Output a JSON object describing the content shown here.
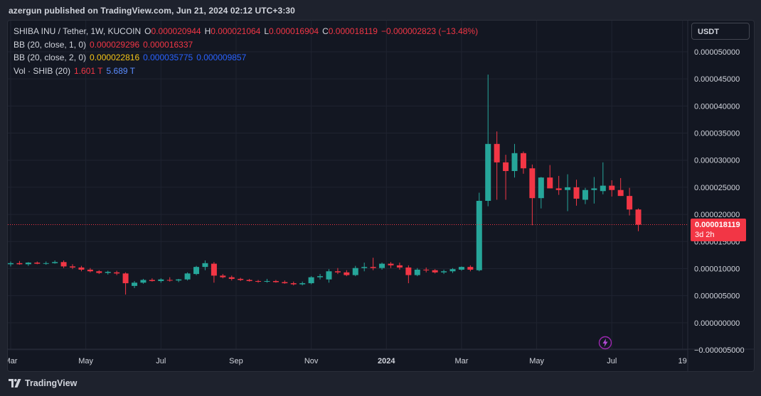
{
  "header": {
    "text": "azergun published on TradingView.com, Jun 21, 2024 02:12 UTC+3:30"
  },
  "legend": {
    "symbol": "SHIBA INU / Tether, 1W, KUCOIN",
    "o_label": "O",
    "o_value": "0.000020944",
    "h_label": "H",
    "h_value": "0.000021064",
    "l_label": "L",
    "l_value": "0.000016904",
    "c_label": "C",
    "c_value": "0.000018119",
    "change": "−0.000002823 (−13.48%)",
    "bb1_label": "BB (20, close, 1, 0)",
    "bb1_v1": "0.000029296",
    "bb1_v2": "0.000016337",
    "bb2_label": "BB (20, close, 2, 0)",
    "bb2_v1": "0.000022816",
    "bb2_v2": "0.000035775",
    "bb2_v3": "0.000009857",
    "vol_label": "Vol · SHIB (20)",
    "vol_v1": "1.601 T",
    "vol_v2": "5.689 T"
  },
  "currency_button": "USDT",
  "price_tag": {
    "price": "0.000018119",
    "countdown": "3d 2h"
  },
  "footer": {
    "brand": "TradingView",
    "logo_icon": "tradingview-logo-icon"
  },
  "ideas_icon": "lightning-bolt-icon",
  "colors": {
    "up": "#26a69a",
    "down": "#f23645",
    "background": "#131722",
    "grid": "#1f2330",
    "text": "#d1d4dc"
  },
  "chart_data": {
    "type": "candlestick",
    "timeframe": "1W",
    "y_axis": {
      "ticks": [
        50000,
        45000,
        40000,
        35000,
        30000,
        25000,
        20000,
        15000,
        10000,
        5000,
        0,
        -5000
      ],
      "labels": [
        "0.000050000",
        "0.000045000",
        "0.000040000",
        "0.000035000",
        "0.000030000",
        "0.000025000",
        "0.000020000",
        "0.000015000",
        "0.000010000",
        "0.000005000",
        "0.000000000",
        "−0.000005000"
      ],
      "unit_note_scale": 1e-09
    },
    "x_axis": {
      "labels": [
        "Mar",
        "May",
        "Jul",
        "Sep",
        "Nov",
        "2024",
        "Mar",
        "May",
        "Jul",
        "19"
      ],
      "label_bar_index": [
        0,
        8.5,
        17,
        25.5,
        34,
        42.5,
        51,
        59.5,
        68,
        76
      ]
    },
    "last_price_line": 18119,
    "candles_e9": [
      [
        10800,
        11300,
        10400,
        11000
      ],
      [
        11000,
        11400,
        10700,
        10800
      ],
      [
        10800,
        11200,
        10500,
        11100
      ],
      [
        11100,
        11300,
        10800,
        10900
      ],
      [
        10900,
        11300,
        10700,
        11000
      ],
      [
        11000,
        11500,
        10900,
        11200
      ],
      [
        11200,
        11500,
        10100,
        10400
      ],
      [
        10400,
        10800,
        9900,
        10200
      ],
      [
        10200,
        10500,
        9500,
        9800
      ],
      [
        9800,
        10100,
        9300,
        9500
      ],
      [
        9500,
        9700,
        9000,
        9200
      ],
      [
        9200,
        9600,
        8900,
        9400
      ],
      [
        9300,
        9600,
        8800,
        9100
      ],
      [
        9100,
        9300,
        5200,
        7300
      ],
      [
        6800,
        7700,
        6400,
        7400
      ],
      [
        7400,
        8100,
        7200,
        7900
      ],
      [
        7900,
        8200,
        7600,
        7700
      ],
      [
        7700,
        8200,
        7400,
        8000
      ],
      [
        7900,
        8400,
        7600,
        7800
      ],
      [
        7800,
        8100,
        7500,
        8000
      ],
      [
        8000,
        9300,
        7800,
        9100
      ],
      [
        9000,
        10500,
        8800,
        10300
      ],
      [
        10300,
        11500,
        9700,
        11000
      ],
      [
        10900,
        11200,
        7400,
        8700
      ],
      [
        8700,
        9000,
        8200,
        8400
      ],
      [
        8400,
        8700,
        7800,
        8100
      ],
      [
        8100,
        8300,
        7700,
        7900
      ],
      [
        7900,
        8100,
        7600,
        7700
      ],
      [
        7700,
        7900,
        7400,
        7600
      ],
      [
        7600,
        8100,
        7400,
        7700
      ],
      [
        7700,
        7900,
        7400,
        7500
      ],
      [
        7500,
        7800,
        7200,
        7300
      ],
      [
        7300,
        7600,
        6900,
        7100
      ],
      [
        7100,
        7600,
        6900,
        7300
      ],
      [
        7300,
        8600,
        7100,
        8400
      ],
      [
        8400,
        9000,
        8000,
        8600
      ],
      [
        8000,
        9900,
        7400,
        9500
      ],
      [
        9500,
        10100,
        9000,
        9300
      ],
      [
        9300,
        9700,
        8600,
        8800
      ],
      [
        8800,
        10500,
        8600,
        10100
      ],
      [
        10100,
        11100,
        9500,
        10300
      ],
      [
        10300,
        12000,
        9700,
        10100
      ],
      [
        10100,
        11100,
        9800,
        10900
      ],
      [
        10900,
        11200,
        10100,
        10600
      ],
      [
        10600,
        11100,
        9800,
        10200
      ],
      [
        10200,
        10600,
        7300,
        8800
      ],
      [
        8800,
        10100,
        8600,
        9800
      ],
      [
        9800,
        10200,
        9300,
        9700
      ],
      [
        9700,
        9900,
        9100,
        9300
      ],
      [
        9300,
        9800,
        9000,
        9500
      ],
      [
        9500,
        10100,
        9200,
        9900
      ],
      [
        9800,
        10400,
        9600,
        10300
      ],
      [
        10300,
        10600,
        9500,
        9800
      ],
      [
        9700,
        24000,
        9500,
        22500
      ],
      [
        22500,
        45800,
        21500,
        33000
      ],
      [
        33000,
        35300,
        22700,
        29600
      ],
      [
        29600,
        31000,
        22700,
        28000
      ],
      [
        28000,
        33000,
        26800,
        31300
      ],
      [
        31300,
        31600,
        27500,
        28500
      ],
      [
        28500,
        29200,
        18000,
        23000
      ],
      [
        23000,
        26900,
        21100,
        26800
      ],
      [
        26800,
        29100,
        25300,
        24800
      ],
      [
        24800,
        27100,
        23600,
        24500
      ],
      [
        24500,
        27400,
        20600,
        25000
      ],
      [
        25000,
        26400,
        21600,
        22900
      ],
      [
        22700,
        24900,
        21900,
        24500
      ],
      [
        24500,
        26900,
        22000,
        24800
      ],
      [
        24300,
        29600,
        23700,
        25300
      ],
      [
        25300,
        26300,
        23300,
        24500
      ],
      [
        24500,
        26700,
        23400,
        23400
      ],
      [
        23400,
        24900,
        19800,
        20900
      ],
      [
        20900,
        21100,
        16900,
        18100
      ]
    ],
    "volume_indicator": {
      "label": "Vol · SHIB (20)",
      "values": [
        "1.601 T",
        "5.689 T"
      ]
    }
  }
}
